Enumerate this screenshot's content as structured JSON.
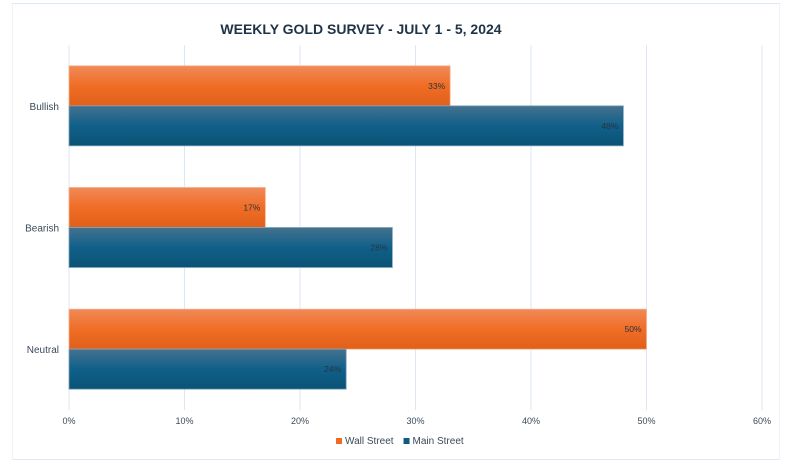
{
  "chart_data": {
    "type": "bar",
    "orientation": "horizontal",
    "title": "WEEKLY GOLD SURVEY - JULY 1 - 5, 2024",
    "categories": [
      "Bullish",
      "Bearish",
      "Neutral"
    ],
    "series": [
      {
        "name": "Wall Street",
        "values": [
          33,
          17,
          50
        ],
        "labels": [
          "33%",
          "17%",
          "50%"
        ],
        "color": "#f06a22"
      },
      {
        "name": "Main Street",
        "values": [
          48,
          28,
          24
        ],
        "labels": [
          "48%",
          "28%",
          "24%"
        ],
        "color": "#0e5a80"
      }
    ],
    "xlim": [
      0,
      60
    ],
    "xticks": [
      0,
      10,
      20,
      30,
      40,
      50,
      60
    ],
    "xtick_labels": [
      "0%",
      "10%",
      "20%",
      "30%",
      "40%",
      "50%",
      "60%"
    ],
    "xlabel": "",
    "ylabel": "",
    "grid": true,
    "legend_position": "bottom"
  }
}
